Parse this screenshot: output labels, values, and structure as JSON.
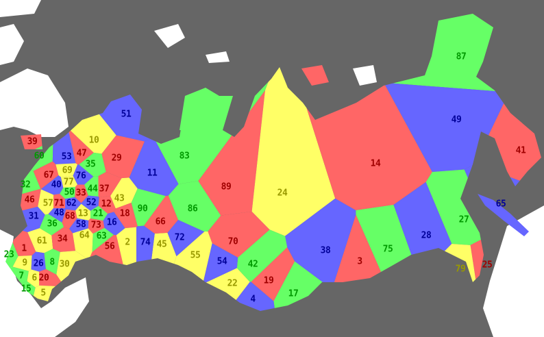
{
  "palette": {
    "red": {
      "fill": "#ff6666",
      "text": "#a00000"
    },
    "yellow": {
      "fill": "#ffff66",
      "text": "#999900"
    },
    "green": {
      "fill": "#66ff66",
      "text": "#009900"
    },
    "blue": {
      "fill": "#6666ff",
      "text": "#000099"
    },
    "sea": "#666666",
    "foreign_land": "#ffffff"
  },
  "regions": [
    {
      "n": "39",
      "c": "red"
    },
    {
      "n": "60",
      "c": "green"
    },
    {
      "n": "53",
      "c": "blue"
    },
    {
      "n": "47",
      "c": "red"
    },
    {
      "n": "10",
      "c": "yellow"
    },
    {
      "n": "29",
      "c": "red"
    },
    {
      "n": "35",
      "c": "green"
    },
    {
      "n": "69",
      "c": "yellow"
    },
    {
      "n": "76",
      "c": "blue"
    },
    {
      "n": "67",
      "c": "red"
    },
    {
      "n": "32",
      "c": "green"
    },
    {
      "n": "40",
      "c": "blue"
    },
    {
      "n": "77",
      "c": "yellow"
    },
    {
      "n": "50",
      "c": "green"
    },
    {
      "n": "33",
      "c": "red"
    },
    {
      "n": "44",
      "c": "green"
    },
    {
      "n": "37",
      "c": "red"
    },
    {
      "n": "46",
      "c": "red"
    },
    {
      "n": "57",
      "c": "yellow"
    },
    {
      "n": "71",
      "c": "red"
    },
    {
      "n": "62",
      "c": "blue"
    },
    {
      "n": "52",
      "c": "blue"
    },
    {
      "n": "12",
      "c": "red"
    },
    {
      "n": "43",
      "c": "yellow"
    },
    {
      "n": "48",
      "c": "blue"
    },
    {
      "n": "13",
      "c": "yellow"
    },
    {
      "n": "21",
      "c": "green"
    },
    {
      "n": "18",
      "c": "red"
    },
    {
      "n": "31",
      "c": "blue"
    },
    {
      "n": "36",
      "c": "green"
    },
    {
      "n": "68",
      "c": "red"
    },
    {
      "n": "58",
      "c": "blue"
    },
    {
      "n": "73",
      "c": "red"
    },
    {
      "n": "16",
      "c": "blue"
    },
    {
      "n": "63",
      "c": "green"
    },
    {
      "n": "61",
      "c": "yellow"
    },
    {
      "n": "34",
      "c": "red"
    },
    {
      "n": "64",
      "c": "yellow"
    },
    {
      "n": "56",
      "c": "red"
    },
    {
      "n": "2",
      "c": "yellow"
    },
    {
      "n": "1",
      "c": "red"
    },
    {
      "n": "23",
      "c": "green"
    },
    {
      "n": "9",
      "c": "yellow"
    },
    {
      "n": "26",
      "c": "blue"
    },
    {
      "n": "8",
      "c": "green"
    },
    {
      "n": "30",
      "c": "yellow"
    },
    {
      "n": "7",
      "c": "green"
    },
    {
      "n": "6",
      "c": "yellow"
    },
    {
      "n": "20",
      "c": "red"
    },
    {
      "n": "15",
      "c": "green"
    },
    {
      "n": "5",
      "c": "yellow"
    },
    {
      "n": "51",
      "c": "blue"
    },
    {
      "n": "83",
      "c": "green"
    },
    {
      "n": "11",
      "c": "blue"
    },
    {
      "n": "89",
      "c": "red"
    },
    {
      "n": "24",
      "c": "yellow"
    },
    {
      "n": "14",
      "c": "red"
    },
    {
      "n": "87",
      "c": "green"
    },
    {
      "n": "49",
      "c": "blue"
    },
    {
      "n": "41",
      "c": "red"
    },
    {
      "n": "65",
      "c": "blue"
    },
    {
      "n": "27",
      "c": "green"
    },
    {
      "n": "28",
      "c": "blue"
    },
    {
      "n": "25",
      "c": "red"
    },
    {
      "n": "79",
      "c": "yellow"
    },
    {
      "n": "75",
      "c": "green"
    },
    {
      "n": "3",
      "c": "red"
    },
    {
      "n": "38",
      "c": "blue"
    },
    {
      "n": "17",
      "c": "green"
    },
    {
      "n": "4",
      "c": "blue"
    },
    {
      "n": "19",
      "c": "red"
    },
    {
      "n": "22",
      "c": "yellow"
    },
    {
      "n": "42",
      "c": "green"
    },
    {
      "n": "54",
      "c": "blue"
    },
    {
      "n": "70",
      "c": "red"
    },
    {
      "n": "55",
      "c": "yellow"
    },
    {
      "n": "72",
      "c": "blue"
    },
    {
      "n": "45",
      "c": "yellow"
    },
    {
      "n": "74",
      "c": "blue"
    },
    {
      "n": "66",
      "c": "red"
    },
    {
      "n": "86",
      "c": "green"
    },
    {
      "n": "90",
      "c": "green"
    }
  ]
}
